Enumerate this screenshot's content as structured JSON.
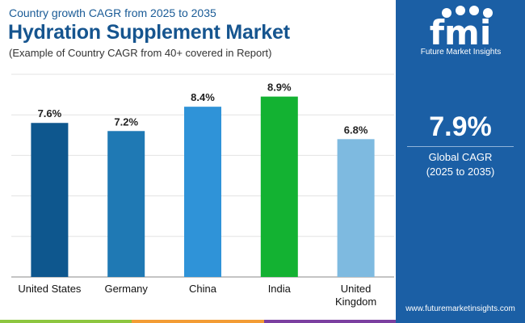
{
  "header": {
    "subtitle_top": "Country growth CAGR from 2025 to 2035",
    "title": "Hydration Supplement Market",
    "note": "(Example of Country CAGR from 40+ covered in Report)"
  },
  "side_panel": {
    "logo_text": "fmi",
    "logo_tagline": "Future Market Insights",
    "cagr_value": "7.9%",
    "cagr_label": "Global CAGR",
    "cagr_period": "(2025 to 2035)",
    "website": "www.futuremarketinsights.com",
    "icons": [
      "shield-icon",
      "lightbulb-icon",
      "trophy-icon",
      "person-icon"
    ]
  },
  "colors": {
    "panel_bg": "#1b5fa5",
    "title": "#16558f",
    "stripe": [
      "#8dc63f",
      "#f39c34",
      "#7b3fa0"
    ]
  },
  "chart_data": {
    "type": "bar",
    "categories": [
      "United States",
      "Germany",
      "China",
      "India",
      "United Kingdom"
    ],
    "values": [
      7.6,
      7.2,
      8.4,
      8.9,
      6.8
    ],
    "value_labels": [
      "7.6%",
      "7.2%",
      "8.4%",
      "8.9%",
      "6.8%"
    ],
    "bar_colors": [
      "#0e578e",
      "#1f79b4",
      "#2f93d8",
      "#13b232",
      "#7ebae0"
    ],
    "ylim": [
      0,
      10
    ],
    "grid": true,
    "title": "",
    "xlabel": "",
    "ylabel": ""
  }
}
